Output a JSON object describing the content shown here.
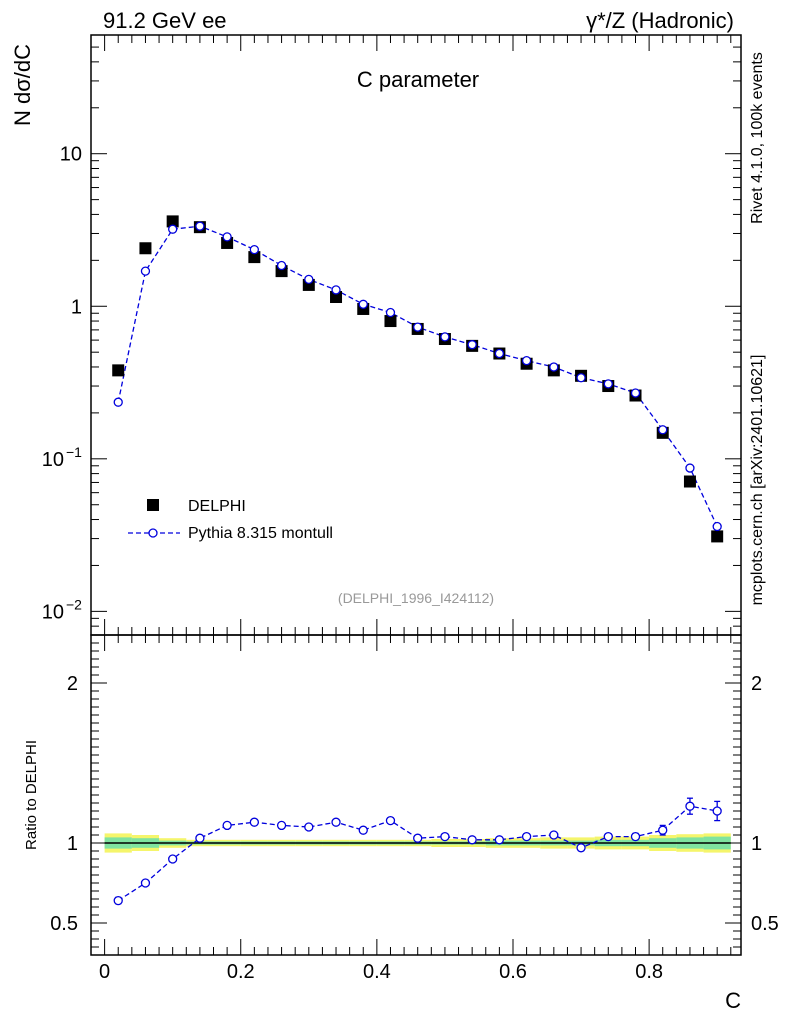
{
  "header": {
    "left_label": "91.2 GeV ee",
    "right_label": "γ*/Z (Hadronic)"
  },
  "side_labels": {
    "rivet": "Rivet 4.1.0,  100k events",
    "mcplots": "mcplots.cern.ch [arXiv:2401.10621]"
  },
  "colors": {
    "data": "#000000",
    "mc": "#0000dd",
    "band_inner": "#7fe3a0",
    "band_outer": "#f5f56b",
    "axis": "#000000",
    "watermark": "#999999",
    "side_text": "#808080"
  },
  "chart_data": [
    {
      "type": "scatter",
      "panel": "main",
      "title": "C parameter",
      "ylabel": "N  dσ/dC",
      "xlabel": "C",
      "yscale": "log",
      "xlim": [
        -0.02,
        0.935
      ],
      "ylim": [
        0.007,
        60
      ],
      "yticks": [
        {
          "value": 10,
          "label": "10"
        },
        {
          "value": 1,
          "label": "1"
        },
        {
          "value": 0.1,
          "label": "10",
          "exp": "−1"
        },
        {
          "value": 0.01,
          "label": "10",
          "exp": "−2"
        }
      ],
      "watermark": "(DELPHI_1996_I424112)",
      "legend": {
        "position": "middle-left",
        "data_label": "DELPHI",
        "mc_label": "Pythia 8.315 montull"
      },
      "x": [
        0.02,
        0.06,
        0.1,
        0.14,
        0.18,
        0.22,
        0.26,
        0.3,
        0.34,
        0.38,
        0.42,
        0.46,
        0.5,
        0.54,
        0.58,
        0.62,
        0.66,
        0.7,
        0.74,
        0.78,
        0.82,
        0.86,
        0.9
      ],
      "series": [
        {
          "name": "DELPHI",
          "style": "square",
          "values": [
            0.38,
            2.4,
            3.6,
            3.3,
            2.6,
            2.1,
            1.7,
            1.38,
            1.15,
            0.96,
            0.8,
            0.71,
            0.61,
            0.55,
            0.49,
            0.42,
            0.38,
            0.35,
            0.3,
            0.26,
            0.148,
            0.071,
            0.031
          ]
        },
        {
          "name": "Pythia 8.315 montull",
          "style": "open-circle-dashed",
          "values": [
            0.235,
            1.7,
            3.2,
            3.35,
            2.85,
            2.35,
            1.85,
            1.5,
            1.28,
            1.03,
            0.91,
            0.73,
            0.63,
            0.56,
            0.49,
            0.44,
            0.4,
            0.34,
            0.31,
            0.27,
            0.155,
            0.087,
            0.036
          ]
        }
      ]
    },
    {
      "type": "scatter",
      "panel": "ratio",
      "ylabel": "Ratio to DELPHI",
      "xlabel": "C",
      "xlim": [
        -0.02,
        0.935
      ],
      "ylim": [
        0.3,
        2.3
      ],
      "yticks": [
        {
          "value": 2,
          "label": "2"
        },
        {
          "value": 1,
          "label": "1"
        },
        {
          "value": 0.5,
          "label": "0.5"
        }
      ],
      "xticks": [
        {
          "value": 0,
          "label": "0"
        },
        {
          "value": 0.2,
          "label": "0.2"
        },
        {
          "value": 0.4,
          "label": "0.4"
        },
        {
          "value": 0.6,
          "label": "0.6"
        },
        {
          "value": 0.8,
          "label": "0.8"
        }
      ],
      "x": [
        0.02,
        0.06,
        0.1,
        0.14,
        0.18,
        0.22,
        0.26,
        0.3,
        0.34,
        0.38,
        0.42,
        0.46,
        0.5,
        0.54,
        0.58,
        0.62,
        0.66,
        0.7,
        0.74,
        0.78,
        0.82,
        0.86,
        0.9
      ],
      "ratio": [
        0.64,
        0.75,
        0.9,
        1.03,
        1.11,
        1.13,
        1.11,
        1.1,
        1.13,
        1.08,
        1.14,
        1.03,
        1.04,
        1.02,
        1.02,
        1.04,
        1.05,
        0.97,
        1.04,
        1.04,
        1.08,
        1.23,
        1.2
      ],
      "ratio_err": [
        0.02,
        0.01,
        0.01,
        0.01,
        0.01,
        0.01,
        0.01,
        0.01,
        0.01,
        0.01,
        0.01,
        0.01,
        0.01,
        0.01,
        0.01,
        0.01,
        0.01,
        0.01,
        0.015,
        0.02,
        0.03,
        0.05,
        0.06
      ],
      "band_inner": [
        0.035,
        0.03,
        0.015,
        0.01,
        0.01,
        0.01,
        0.01,
        0.01,
        0.01,
        0.01,
        0.01,
        0.01,
        0.01,
        0.01,
        0.015,
        0.015,
        0.015,
        0.015,
        0.02,
        0.02,
        0.03,
        0.035,
        0.04
      ],
      "band_outer": [
        0.06,
        0.05,
        0.03,
        0.02,
        0.02,
        0.02,
        0.02,
        0.02,
        0.02,
        0.02,
        0.02,
        0.02,
        0.025,
        0.025,
        0.03,
        0.03,
        0.035,
        0.035,
        0.04,
        0.04,
        0.05,
        0.055,
        0.06
      ]
    }
  ]
}
